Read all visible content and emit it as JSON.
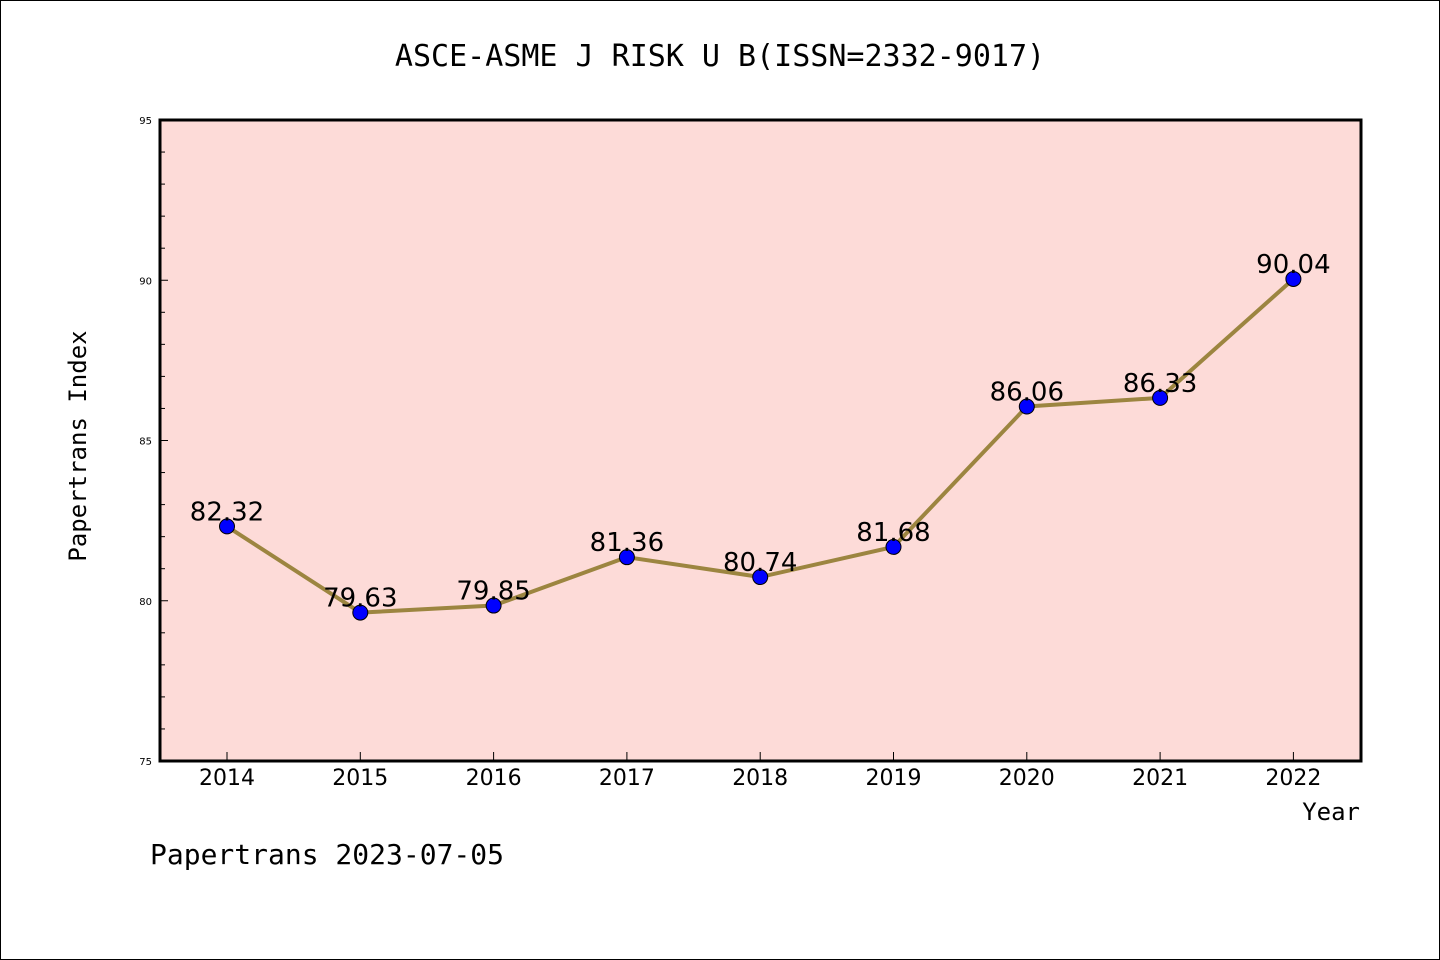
{
  "chart_data": {
    "type": "line",
    "title": "ASCE-ASME J RISK U B(ISSN=2332-9017)",
    "xlabel": "Year",
    "ylabel": "Papertrans Index",
    "categories": [
      "2014",
      "2015",
      "2016",
      "2017",
      "2018",
      "2019",
      "2020",
      "2021",
      "2022"
    ],
    "series": [
      {
        "values": [
          82.32,
          79.63,
          79.85,
          81.36,
          80.74,
          81.68,
          86.06,
          86.33,
          90.04
        ],
        "labels": [
          "82.32",
          "79.63",
          "79.85",
          "81.36",
          "80.74",
          "81.68",
          "86.06",
          "86.33",
          "90.04"
        ]
      }
    ],
    "ylim": [
      75,
      95
    ],
    "yticks": [
      "75",
      "80",
      "85",
      "90",
      "95"
    ],
    "grid": false,
    "legend": "none",
    "colors": {
      "plot_background": "#fddbd8",
      "line": "#9c8540",
      "marker": "#0000ff"
    }
  },
  "footer": "Papertrans 2023-07-05"
}
